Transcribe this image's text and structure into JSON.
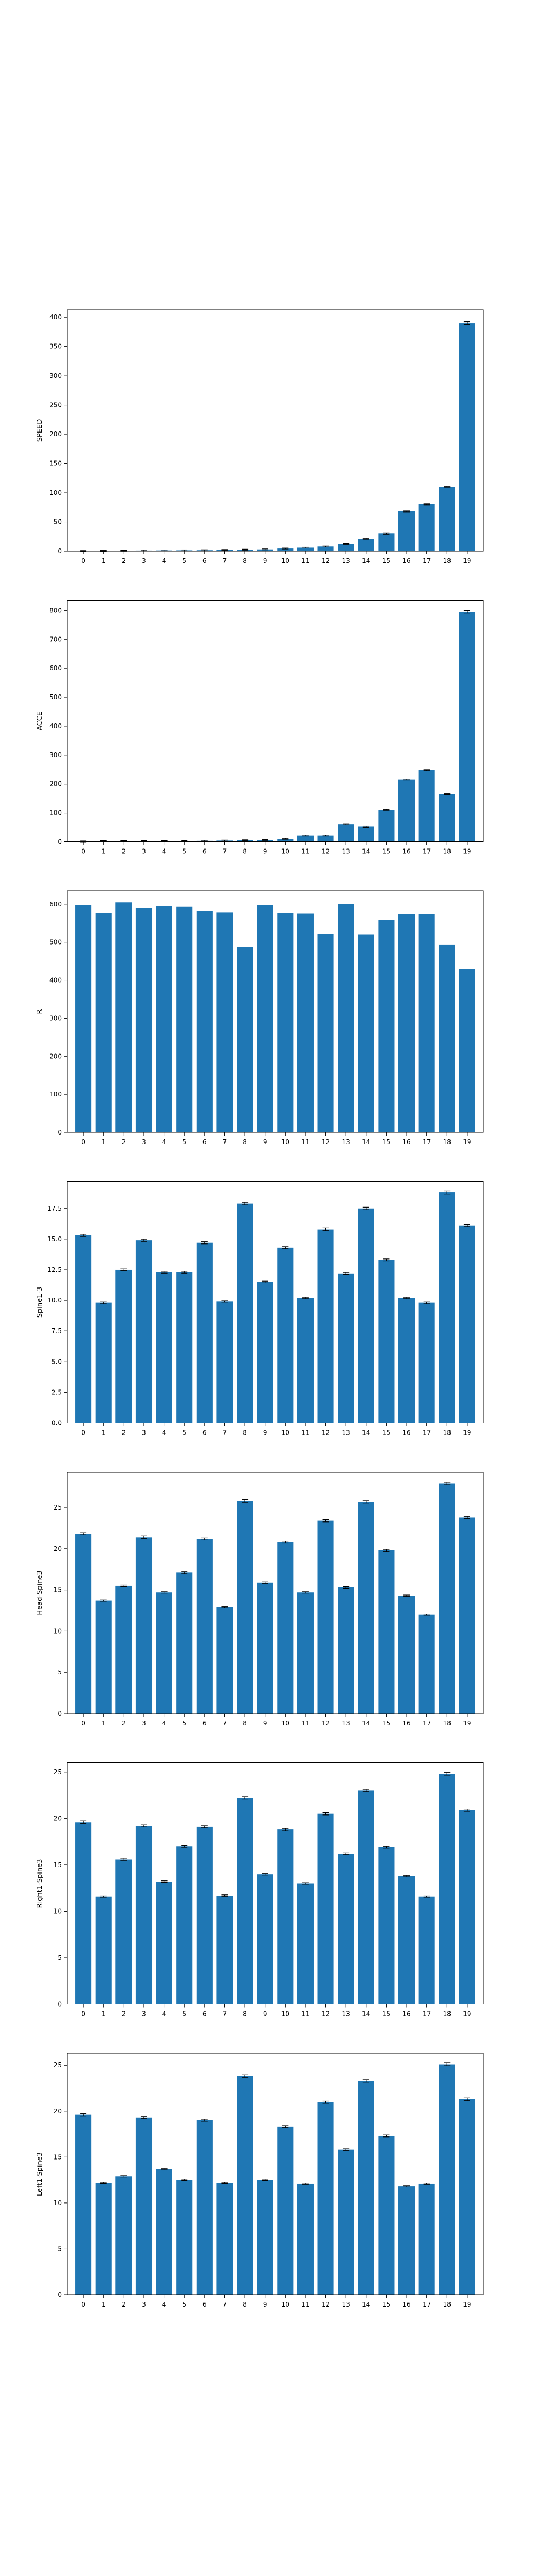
{
  "figure": {
    "background": "#ffffff"
  },
  "chart_data": [
    {
      "type": "bar",
      "ylabel": "SPEED",
      "bar_color": "#1f77b4",
      "categories": [
        "0",
        "1",
        "2",
        "3",
        "4",
        "5",
        "6",
        "7",
        "8",
        "9",
        "10",
        "11",
        "12",
        "13",
        "14",
        "15",
        "16",
        "17",
        "18",
        "19"
      ],
      "values": [
        0.2,
        0.4,
        0.6,
        1.0,
        1.2,
        1.4,
        1.6,
        2.0,
        2.5,
        3.0,
        4.5,
        6.0,
        8.0,
        12.5,
        21,
        30,
        68,
        80,
        110,
        390
      ],
      "ylim": [
        0,
        413
      ],
      "yticks": [
        0,
        50,
        100,
        150,
        200,
        250,
        300,
        350,
        400
      ],
      "error_bars": true
    },
    {
      "type": "bar",
      "ylabel": "ACCE",
      "bar_color": "#1f77b4",
      "categories": [
        "0",
        "1",
        "2",
        "3",
        "4",
        "5",
        "6",
        "7",
        "8",
        "9",
        "10",
        "11",
        "12",
        "13",
        "14",
        "15",
        "16",
        "17",
        "18",
        "19"
      ],
      "values": [
        1,
        2,
        2,
        2,
        2,
        2,
        3,
        4,
        5,
        6,
        10,
        22,
        22,
        60,
        52,
        110,
        215,
        248,
        165,
        795
      ],
      "ylim": [
        0,
        835
      ],
      "yticks": [
        0,
        100,
        200,
        300,
        400,
        500,
        600,
        700,
        800
      ],
      "error_bars": true
    },
    {
      "type": "bar",
      "ylabel": "R",
      "bar_color": "#1f77b4",
      "categories": [
        "0",
        "1",
        "2",
        "3",
        "4",
        "5",
        "6",
        "7",
        "8",
        "9",
        "10",
        "11",
        "12",
        "13",
        "14",
        "15",
        "16",
        "17",
        "18",
        "19"
      ],
      "values": [
        597,
        577,
        605,
        590,
        595,
        593,
        582,
        578,
        487,
        598,
        577,
        575,
        522,
        600,
        520,
        558,
        573,
        573,
        494,
        430
      ],
      "ylim": [
        0,
        635
      ],
      "yticks": [
        0,
        100,
        200,
        300,
        400,
        500,
        600
      ],
      "error_bars": false
    },
    {
      "type": "bar",
      "ylabel": "Spine1-3",
      "bar_color": "#1f77b4",
      "categories": [
        "0",
        "1",
        "2",
        "3",
        "4",
        "5",
        "6",
        "7",
        "8",
        "9",
        "10",
        "11",
        "12",
        "13",
        "14",
        "15",
        "16",
        "17",
        "18",
        "19"
      ],
      "values": [
        15.3,
        9.8,
        12.5,
        14.9,
        12.3,
        12.3,
        14.7,
        9.9,
        17.9,
        11.5,
        14.3,
        10.2,
        15.8,
        12.2,
        17.5,
        13.3,
        10.2,
        9.8,
        18.8,
        16.1
      ],
      "ylim": [
        0,
        19.7
      ],
      "yticks": [
        0.0,
        2.5,
        5.0,
        7.5,
        10.0,
        12.5,
        15.0,
        17.5
      ],
      "error_bars": true
    },
    {
      "type": "bar",
      "ylabel": "Head-Spine3",
      "bar_color": "#1f77b4",
      "categories": [
        "0",
        "1",
        "2",
        "3",
        "4",
        "5",
        "6",
        "7",
        "8",
        "9",
        "10",
        "11",
        "12",
        "13",
        "14",
        "15",
        "16",
        "17",
        "18",
        "19"
      ],
      "values": [
        21.8,
        13.7,
        15.5,
        21.4,
        14.7,
        17.1,
        21.2,
        12.9,
        25.8,
        15.9,
        20.8,
        14.7,
        23.4,
        15.3,
        25.7,
        19.8,
        14.3,
        12.0,
        27.9,
        23.8
      ],
      "ylim": [
        0,
        29.3
      ],
      "yticks": [
        0,
        5,
        10,
        15,
        20,
        25
      ],
      "error_bars": true
    },
    {
      "type": "bar",
      "ylabel": "Right1-Spine3",
      "bar_color": "#1f77b4",
      "categories": [
        "0",
        "1",
        "2",
        "3",
        "4",
        "5",
        "6",
        "7",
        "8",
        "9",
        "10",
        "11",
        "12",
        "13",
        "14",
        "15",
        "16",
        "17",
        "18",
        "19"
      ],
      "values": [
        19.6,
        11.6,
        15.6,
        19.2,
        13.2,
        17.0,
        19.1,
        11.7,
        22.2,
        14.0,
        18.8,
        13.0,
        20.5,
        16.2,
        23.0,
        16.9,
        13.8,
        11.6,
        24.8,
        20.9
      ],
      "ylim": [
        0,
        26.0
      ],
      "yticks": [
        0,
        5,
        10,
        15,
        20,
        25
      ],
      "error_bars": true
    },
    {
      "type": "bar",
      "ylabel": "Left1-Spine3",
      "bar_color": "#1f77b4",
      "categories": [
        "0",
        "1",
        "2",
        "3",
        "4",
        "5",
        "6",
        "7",
        "8",
        "9",
        "10",
        "11",
        "12",
        "13",
        "14",
        "15",
        "16",
        "17",
        "18",
        "19"
      ],
      "values": [
        19.6,
        12.2,
        12.9,
        19.3,
        13.7,
        12.5,
        19.0,
        12.2,
        23.8,
        12.5,
        18.3,
        12.1,
        21.0,
        15.8,
        23.3,
        17.3,
        11.8,
        12.1,
        25.1,
        21.3
      ],
      "ylim": [
        0,
        26.3
      ],
      "yticks": [
        0,
        5,
        10,
        15,
        20,
        25
      ],
      "error_bars": true
    }
  ]
}
